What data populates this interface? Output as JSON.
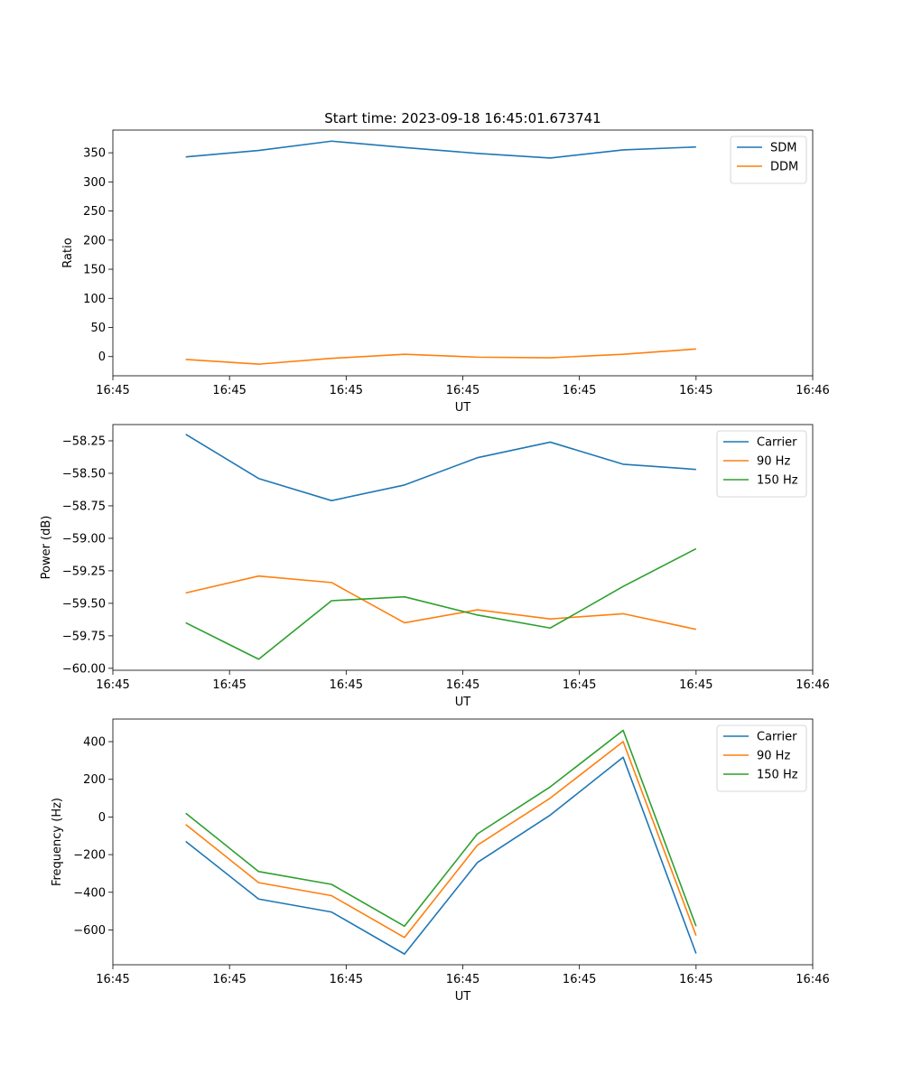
{
  "figure": {
    "title": "Start time: 2023-09-18 16:45:01.673741"
  },
  "chart_data": [
    {
      "type": "line",
      "title": "Start time: 2023-09-18 16:45:01.673741",
      "xlabel": "UT",
      "ylabel": "Ratio",
      "x": [
        0.5,
        1,
        1.5,
        2,
        2.5,
        3,
        3.5,
        4
      ],
      "xlim": [
        0,
        4.8
      ],
      "x_ticks": [
        0,
        0.8,
        1.6,
        2.4,
        3.2,
        4.0,
        4.8
      ],
      "x_tick_labels": [
        "16:45",
        "16:45",
        "16:45",
        "16:45",
        "16:45",
        "16:45",
        "16:46"
      ],
      "ylim": [
        -33,
        389
      ],
      "y_ticks": [
        0,
        50,
        100,
        150,
        200,
        250,
        300,
        350
      ],
      "y_tick_labels": [
        "0",
        "50",
        "100",
        "150",
        "200",
        "250",
        "300",
        "350"
      ],
      "legend_position": "top-right",
      "series": [
        {
          "name": "SDM",
          "color": "#1f77b4",
          "values": [
            343,
            354,
            370,
            359,
            349,
            341,
            355,
            360
          ]
        },
        {
          "name": "DDM",
          "color": "#ff7f0e",
          "values": [
            -5,
            -13,
            -3,
            4,
            -1,
            -2,
            4,
            13
          ]
        }
      ]
    },
    {
      "type": "line",
      "title": "",
      "xlabel": "UT",
      "ylabel": "Power (dB)",
      "x": [
        0.5,
        1,
        1.5,
        2,
        2.5,
        3,
        3.5,
        4
      ],
      "xlim": [
        0,
        4.8
      ],
      "x_ticks": [
        0,
        0.8,
        1.6,
        2.4,
        3.2,
        4.0,
        4.8
      ],
      "x_tick_labels": [
        "16:45",
        "16:45",
        "16:45",
        "16:45",
        "16:45",
        "16:45",
        "16:46"
      ],
      "ylim": [
        -60.015,
        -58.125
      ],
      "y_ticks": [
        -58.25,
        -58.5,
        -58.75,
        -59.0,
        -59.25,
        -59.5,
        -59.75,
        -60.0
      ],
      "y_tick_labels": [
        "−58.25",
        "−58.50",
        "−58.75",
        "−59.00",
        "−59.25",
        "−59.50",
        "−59.75",
        "−60.00"
      ],
      "legend_position": "top-right",
      "series": [
        {
          "name": "Carrier",
          "color": "#1f77b4",
          "values": [
            -58.2,
            -58.54,
            -58.71,
            -58.59,
            -58.38,
            -58.26,
            -58.43,
            -58.47
          ]
        },
        {
          "name": "90 Hz",
          "color": "#ff7f0e",
          "values": [
            -59.42,
            -59.29,
            -59.34,
            -59.65,
            -59.55,
            -59.62,
            -59.58,
            -59.7
          ]
        },
        {
          "name": "150 Hz",
          "color": "#2ca02c",
          "values": [
            -59.65,
            -59.93,
            -59.48,
            -59.45,
            -59.59,
            -59.69,
            -59.37,
            -59.08
          ]
        }
      ]
    },
    {
      "type": "line",
      "title": "",
      "xlabel": "UT",
      "ylabel": "Frequency (Hz)",
      "x": [
        0.5,
        1,
        1.5,
        2,
        2.5,
        3,
        3.5,
        4
      ],
      "xlim": [
        0,
        4.8
      ],
      "x_ticks": [
        0,
        0.8,
        1.6,
        2.4,
        3.2,
        4.0,
        4.8
      ],
      "x_tick_labels": [
        "16:45",
        "16:45",
        "16:45",
        "16:45",
        "16:45",
        "16:45",
        "16:46"
      ],
      "ylim": [
        -785,
        520
      ],
      "y_ticks": [
        -600,
        -400,
        -200,
        0,
        200,
        400
      ],
      "y_tick_labels": [
        "−600",
        "−400",
        "−200",
        "0",
        "200",
        "400"
      ],
      "legend_position": "top-right",
      "series": [
        {
          "name": "Carrier",
          "color": "#1f77b4",
          "values": [
            -130,
            -436,
            -505,
            -728,
            -242,
            10,
            317,
            -725
          ]
        },
        {
          "name": "90 Hz",
          "color": "#ff7f0e",
          "values": [
            -40,
            -349,
            -418,
            -640,
            -150,
            100,
            400,
            -630
          ]
        },
        {
          "name": "150 Hz",
          "color": "#2ca02c",
          "values": [
            20,
            -290,
            -358,
            -580,
            -90,
            160,
            460,
            -580
          ]
        }
      ]
    }
  ]
}
